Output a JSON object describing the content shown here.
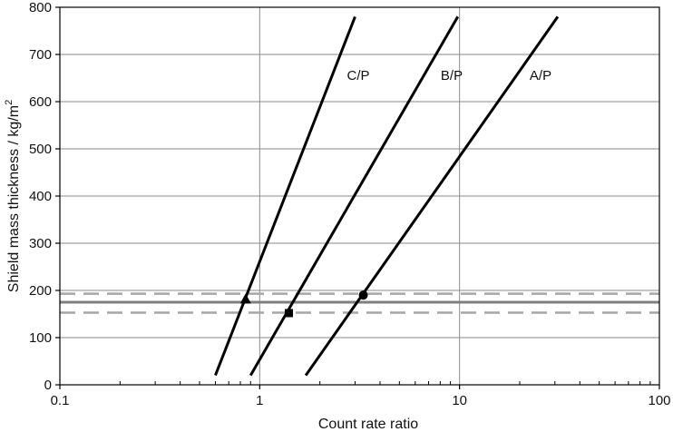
{
  "chart_data": {
    "type": "line",
    "title": "",
    "xlabel": "Count rate ratio",
    "ylabel": "Shield mass thickness / kg/m",
    "ylabel_superscript": "2",
    "x_scale": "log",
    "xlim": [
      0.1,
      100
    ],
    "ylim": [
      0,
      800
    ],
    "x_ticks": [
      0.1,
      1,
      10,
      100
    ],
    "x_tick_labels": [
      "0.1",
      "1",
      "10",
      "100"
    ],
    "y_ticks": [
      0,
      100,
      200,
      300,
      400,
      500,
      600,
      700,
      800
    ],
    "y_tick_labels": [
      "0",
      "100",
      "200",
      "300",
      "400",
      "500",
      "600",
      "700",
      "800"
    ],
    "grid": true,
    "series": [
      {
        "label": "C/P",
        "x": [
          0.6,
          3.0
        ],
        "y": [
          20,
          780
        ],
        "marker": "triangle",
        "marker_point": [
          0.85,
          182
        ]
      },
      {
        "label": "B/P",
        "x": [
          0.9,
          9.8
        ],
        "y": [
          20,
          780
        ],
        "marker": "square",
        "marker_point": [
          1.4,
          152
        ]
      },
      {
        "label": "A/P",
        "x": [
          1.7,
          31
        ],
        "y": [
          20,
          780
        ],
        "marker": "circle",
        "marker_point": [
          3.3,
          190
        ]
      }
    ],
    "reference_lines": [
      {
        "style": "solid",
        "y": 175
      },
      {
        "style": "dashed",
        "y": 193
      },
      {
        "style": "dashed",
        "y": 153
      }
    ],
    "colors": {
      "series": "#000000",
      "grid": "#8a8a8a",
      "reference_solid": "#7f7f7f",
      "reference_dashed": "#a6a6a6"
    }
  }
}
